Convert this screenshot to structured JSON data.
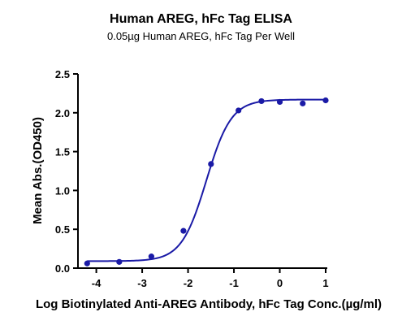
{
  "chart_data": {
    "type": "scatter",
    "title": "Human AREG, hFc Tag ELISA",
    "subtitle": "0.05µg Human AREG, hFc Tag Per Well",
    "xlabel": "Log Biotinylated Anti-AREG Antibody, hFc Tag Conc.(µg/ml)",
    "ylabel": "Mean Abs.(OD450)",
    "xlim": [
      -4.4,
      1.0
    ],
    "ylim": [
      0,
      2.5
    ],
    "x_ticks": [
      -4,
      -3,
      -2,
      -1,
      0,
      1
    ],
    "x_tick_labels": [
      "-4",
      "-3",
      "-2",
      "-1",
      "0",
      "1"
    ],
    "y_ticks": [
      0,
      0.5,
      1.0,
      1.5,
      2.0,
      2.5
    ],
    "y_tick_labels": [
      "0.0",
      "0.5",
      "1.0",
      "1.5",
      "2.0",
      "2.5"
    ],
    "grid": false,
    "series": [
      {
        "x": [
          -4.2,
          -3.5,
          -2.8,
          -2.1,
          -1.5,
          -0.9,
          -0.4,
          0.0,
          0.5,
          1.0
        ],
        "y": [
          0.06,
          0.08,
          0.15,
          0.48,
          1.34,
          2.03,
          2.15,
          2.14,
          2.12,
          2.16
        ]
      }
    ],
    "fit_curve": {
      "model": "4PL",
      "bottom": 0.09,
      "top": 2.17,
      "log_ec50": -1.6,
      "hill_slope": 1.6
    },
    "colors": {
      "series": "#1a1aa6",
      "axes": "#000000"
    }
  }
}
